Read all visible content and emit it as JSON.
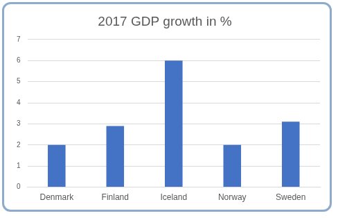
{
  "chart_data": {
    "type": "bar",
    "title": "2017 GDP growth in %",
    "categories": [
      "Denmark",
      "Finland",
      "Iceland",
      "Norway",
      "Sweden"
    ],
    "values": [
      2.0,
      2.9,
      6.0,
      2.0,
      3.1
    ],
    "color": "#4472c4",
    "ylim": [
      0,
      7
    ],
    "yticks": [
      0,
      1,
      2,
      3,
      4,
      5,
      6,
      7
    ],
    "grid": true
  }
}
